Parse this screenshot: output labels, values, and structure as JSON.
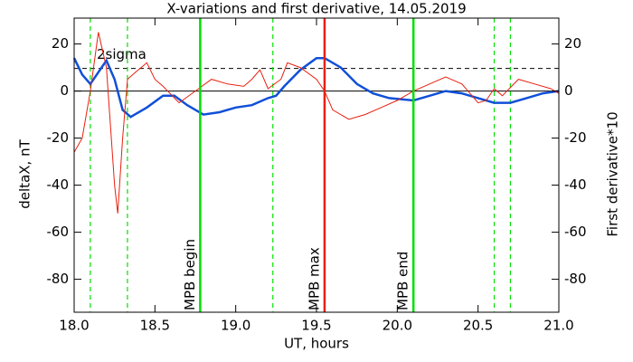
{
  "chart_data": {
    "type": "line",
    "title": "X-variations and first derivative, 14.05.2019",
    "xlabel": "UT, hours",
    "ylabel": "deltaX, nT",
    "y2label": "First derivative*10",
    "ylabel_color": "#1050d8",
    "y2label_color": "#e82010",
    "xlim": [
      18.0,
      21.0
    ],
    "ylim": [
      -94,
      31
    ],
    "y2lim": [
      -94,
      31
    ],
    "xticks": [
      {
        "value": 18.0,
        "label": "18.0"
      },
      {
        "value": 18.5,
        "label": "18.5"
      },
      {
        "value": 19.0,
        "label": "19.0"
      },
      {
        "value": 19.5,
        "label": "19.5"
      },
      {
        "value": 20.0,
        "label": "20.0"
      },
      {
        "value": 20.5,
        "label": "20.5"
      },
      {
        "value": 21.0,
        "label": "21.0"
      }
    ],
    "yticks": [
      20,
      0,
      -20,
      -40,
      -60,
      -80
    ],
    "y2ticks": [
      20,
      0,
      -20,
      -40,
      -60,
      -80
    ],
    "series": [
      {
        "color": "#1050d8",
        "axis": "y",
        "x": [
          18.0,
          18.05,
          18.1,
          18.15,
          18.2,
          18.25,
          18.3,
          18.35,
          18.45,
          18.55,
          18.62,
          18.7,
          18.8,
          18.9,
          19.0,
          19.1,
          19.2,
          19.25,
          19.3,
          19.4,
          19.5,
          19.55,
          19.65,
          19.75,
          19.85,
          19.95,
          20.1,
          20.2,
          20.3,
          20.4,
          20.5,
          20.6,
          20.7,
          20.8,
          20.9,
          21.0
        ],
        "values": [
          14,
          7,
          3,
          8,
          13,
          5,
          -8,
          -11,
          -7,
          -2,
          -2,
          -6,
          -10,
          -9,
          -7,
          -6,
          -3,
          -2,
          2,
          9,
          14,
          14,
          10,
          3,
          -1,
          -3,
          -4,
          -2,
          0,
          -1,
          -3,
          -5,
          -5,
          -3,
          -1,
          0
        ]
      },
      {
        "color": "#e82010",
        "axis": "y2",
        "x": [
          18.0,
          18.05,
          18.1,
          18.15,
          18.2,
          18.25,
          18.27,
          18.3,
          18.33,
          18.38,
          18.45,
          18.5,
          18.55,
          18.65,
          18.75,
          18.85,
          18.95,
          19.05,
          19.1,
          19.15,
          19.2,
          19.28,
          19.32,
          19.4,
          19.5,
          19.55,
          19.6,
          19.7,
          19.8,
          19.9,
          20.0,
          20.1,
          20.2,
          20.3,
          20.4,
          20.5,
          20.55,
          20.6,
          20.65,
          20.75,
          20.85,
          20.95,
          21.0
        ],
        "values": [
          -26,
          -20,
          0,
          25,
          10,
          -40,
          -52,
          -20,
          5,
          8,
          12,
          5,
          2,
          -5,
          0,
          5,
          3,
          2,
          5,
          9,
          1,
          5,
          12,
          10,
          5,
          0,
          -8,
          -12,
          -10,
          -7,
          -4,
          0,
          3,
          6,
          3,
          -5,
          -4,
          1,
          -2,
          5,
          3,
          1,
          -1
        ]
      }
    ],
    "sigma_line": {
      "value": 9.6,
      "label": "2sigma"
    },
    "markers": [
      {
        "x": 18.78,
        "label": "MPB begin",
        "color": "#00e000"
      },
      {
        "x": 19.55,
        "label": "MPB max",
        "color": "#e82010"
      },
      {
        "x": 20.1,
        "label": "MPB end",
        "color": "#00e000"
      }
    ],
    "dashed_markers": {
      "color": "#00e000",
      "x": [
        18.1,
        18.33,
        19.23,
        20.6,
        20.7
      ]
    }
  }
}
